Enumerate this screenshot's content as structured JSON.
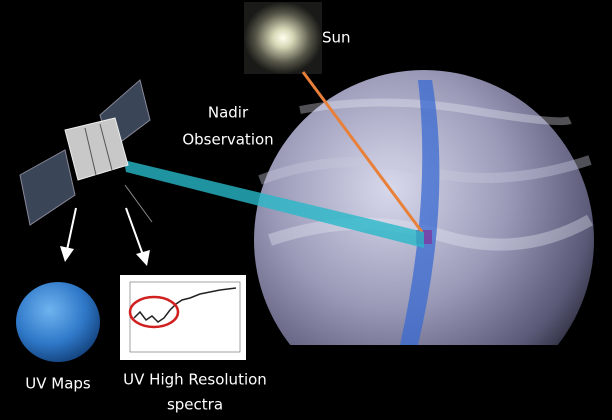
{
  "labels": {
    "sun": "Sun",
    "nadir": {
      "lines": [
        "Nadir",
        "Observation"
      ]
    },
    "uv_maps": "UV Maps",
    "uv_spectra": {
      "lines": [
        "UV High Resolution",
        "spectra"
      ]
    }
  }
}
